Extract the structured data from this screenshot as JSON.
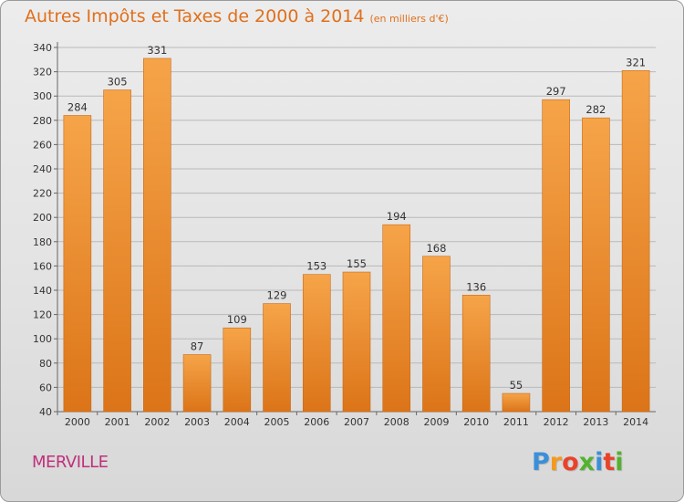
{
  "header": {
    "title": "Autres Impôts et Taxes de 2000 à 2014",
    "subtitle": "(en milliers d'€)"
  },
  "footer": {
    "city": "MERVILLE",
    "logo_text": "Proxiti"
  },
  "colors": {
    "bar_top": "#f6a449",
    "bar_bottom": "#dc7418",
    "bar_edge": "#c86a18",
    "title": "#e0701c",
    "city": "#c0307c",
    "grid": "#b9b9b9"
  },
  "chart_data": {
    "type": "bar",
    "title": "Autres Impôts et Taxes de 2000 à 2014",
    "subtitle": "(en milliers d'€)",
    "categories": [
      "2000",
      "2001",
      "2002",
      "2003",
      "2004",
      "2005",
      "2006",
      "2007",
      "2008",
      "2009",
      "2010",
      "2011",
      "2012",
      "2013",
      "2014"
    ],
    "values": [
      284,
      305,
      331,
      87,
      109,
      129,
      153,
      155,
      194,
      168,
      136,
      55,
      297,
      282,
      321
    ],
    "ylim": [
      40,
      340
    ],
    "yticks": [
      40,
      60,
      80,
      100,
      120,
      140,
      160,
      180,
      200,
      220,
      240,
      260,
      280,
      300,
      320,
      340
    ],
    "grid": true,
    "data_labels": true
  }
}
